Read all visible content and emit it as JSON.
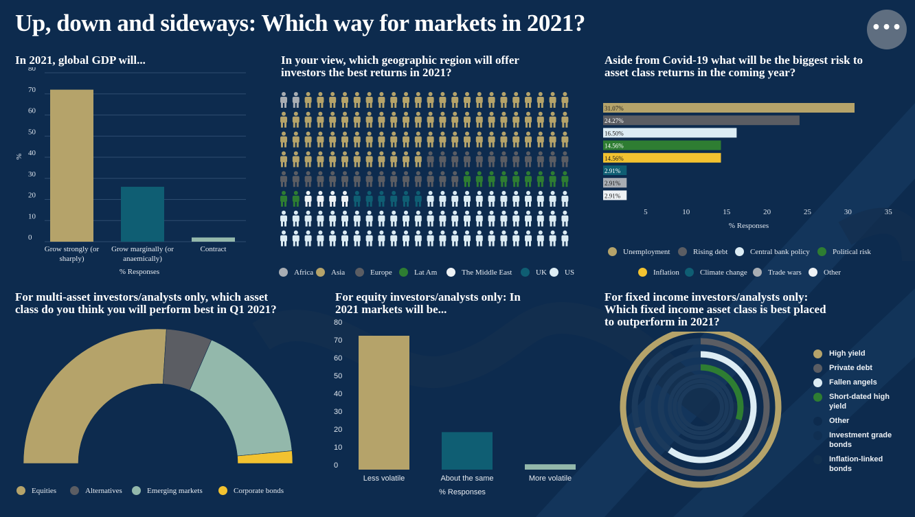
{
  "page": {
    "title": "Up, down and sideways: Which way for markets in 2021?",
    "more_button": "•••"
  },
  "colors": {
    "background": "#0d2b4e",
    "gold": "#b5a36a",
    "grey": "#5b5d63",
    "light_blue": "#dcecf4",
    "green": "#2e7d32",
    "yellow": "#f2c230",
    "teal": "#0f5e73",
    "light_grey": "#a8adb3",
    "white": "#eef2f5",
    "sage": "#93b8ab",
    "dark_navy": "#1f3d5c"
  },
  "chart_data": [
    {
      "id": "gdp",
      "type": "bar",
      "title": "In 2021,  global GDP will...",
      "categories": [
        "Grow strongly (or sharply)",
        "Grow marginally (or anaemically)",
        "Contract"
      ],
      "category_lines": [
        [
          "Grow strongly (or",
          "sharply)"
        ],
        [
          "Grow marginally (or",
          "anaemically)"
        ],
        [
          "Contract"
        ]
      ],
      "values": [
        72,
        26,
        2
      ],
      "colors": [
        "#b5a36a",
        "#0f5e73",
        "#93b8ab"
      ],
      "xlabel": "% Responses",
      "ylabel": "%",
      "ylim": [
        0,
        80
      ],
      "yticks": [
        "0",
        "10",
        "20",
        "30",
        "40",
        "50",
        "60",
        "70",
        "80"
      ],
      "grid": true
    },
    {
      "id": "regions",
      "type": "pictogram",
      "title": "In your view, which geographic region will offer investors the best returns in  2021?",
      "title_lines": [
        "In your view, which geographic region will offer",
        "investors the best returns in  2021?"
      ],
      "unit": "person",
      "columns": 24,
      "series": [
        {
          "name": "Africa",
          "count": 2,
          "color": "#a8adb3"
        },
        {
          "name": "Asia",
          "count": 82,
          "color": "#b5a36a"
        },
        {
          "name": "Europe",
          "count": 27,
          "color": "#5b5d63"
        },
        {
          "name": "Lat Am",
          "count": 11,
          "color": "#2e7d32"
        },
        {
          "name": "The Middle East",
          "count": 4,
          "color": "#eef2f5"
        },
        {
          "name": "UK",
          "count": 6,
          "color": "#0f5e73"
        },
        {
          "name": "US",
          "count": 60,
          "color": "#dcecf4"
        }
      ]
    },
    {
      "id": "risks",
      "type": "bar",
      "orientation": "horizontal",
      "title": "Aside from  Covid-19 what will be the biggest risk to asset class returns in the coming year?",
      "title_lines": [
        "Aside from  Covid-19 what will be the biggest risk to",
        "asset class returns in the coming year?"
      ],
      "categories": [
        "Unemployment",
        "Rising debt",
        "Central bank policy",
        "Political risk",
        "Inflation",
        "Climate change",
        "Trade wars",
        "Other"
      ],
      "values": [
        31.07,
        24.27,
        16.5,
        14.56,
        14.56,
        2.91,
        2.91,
        2.91
      ],
      "value_labels": [
        "31.07%",
        "24.27%",
        "16.50%",
        "14.56%",
        "14.56%",
        "2.91%",
        "2.91%",
        "2.91%"
      ],
      "colors": [
        "#b5a36a",
        "#5b5d63",
        "#dcecf4",
        "#2e7d32",
        "#f2c230",
        "#0f5e73",
        "#a8adb3",
        "#eef2f5"
      ],
      "xlabel": "% Responses",
      "xlim": [
        0,
        35
      ],
      "xticks": [
        "5",
        "10",
        "15",
        "20",
        "25",
        "30",
        "35"
      ],
      "legend_position": "bottom"
    },
    {
      "id": "multiasset",
      "type": "pie",
      "style": "half-donut",
      "title": "For multi-asset investors/analysts only, which asset class do you think you will perform best in Q1 2021?",
      "title_lines": [
        "For multi-asset investors/analysts only, which asset",
        "class do you think you will perform best in Q1 2021?"
      ],
      "categories": [
        "Equities",
        "Alternatives",
        "Emerging markets",
        "Corporate bonds"
      ],
      "values": [
        52,
        11,
        34,
        3
      ],
      "colors": [
        "#b5a36a",
        "#5b5d63",
        "#93b8ab",
        "#f2c230"
      ],
      "legend_position": "bottom"
    },
    {
      "id": "equity",
      "type": "bar",
      "title": "For equity investors/analysts only: In 2021 markets will be...",
      "title_lines": [
        "For equity investors/analysts only: In",
        "2021 markets will be..."
      ],
      "categories": [
        "Less volatile",
        "About the same",
        "More volatile"
      ],
      "values": [
        75,
        21,
        3
      ],
      "colors": [
        "#b5a36a",
        "#0f5e73",
        "#93b8ab"
      ],
      "xlabel": "% Responses",
      "ylim": [
        0,
        80
      ],
      "yticks": [
        "0",
        "10",
        "20",
        "30",
        "40",
        "50",
        "60",
        "70",
        "80"
      ]
    },
    {
      "id": "fixedincome",
      "type": "radial-bar",
      "title": "For fixed income investors/analysts only: Which fixed income asset class is best placed to outperform in 2021?",
      "title_lines": [
        "For fixed income investors/analysts only:",
        "Which fixed income asset class is best placed",
        "to outperform in 2021?"
      ],
      "categories": [
        "High yield",
        "Private debt",
        "Fallen angels",
        "Short-dated high yield",
        "Other",
        "Investment grade bonds",
        "Inflation-linked bonds"
      ],
      "category_lines": [
        [
          "High yield"
        ],
        [
          "Private debt"
        ],
        [
          "Fallen angels"
        ],
        [
          "Short-dated high",
          "yield"
        ],
        [
          "Other"
        ],
        [
          "Investment grade",
          "bonds"
        ],
        [
          "Inflation-linked",
          "bonds"
        ]
      ],
      "values": [
        100,
        70,
        60,
        30,
        0,
        0,
        0
      ],
      "colors": [
        "#b5a36a",
        "#5b5d63",
        "#dcecf4",
        "#2e7d32",
        "#0d2b4e",
        "#102f52",
        "#12304f"
      ],
      "legend_position": "right"
    }
  ]
}
